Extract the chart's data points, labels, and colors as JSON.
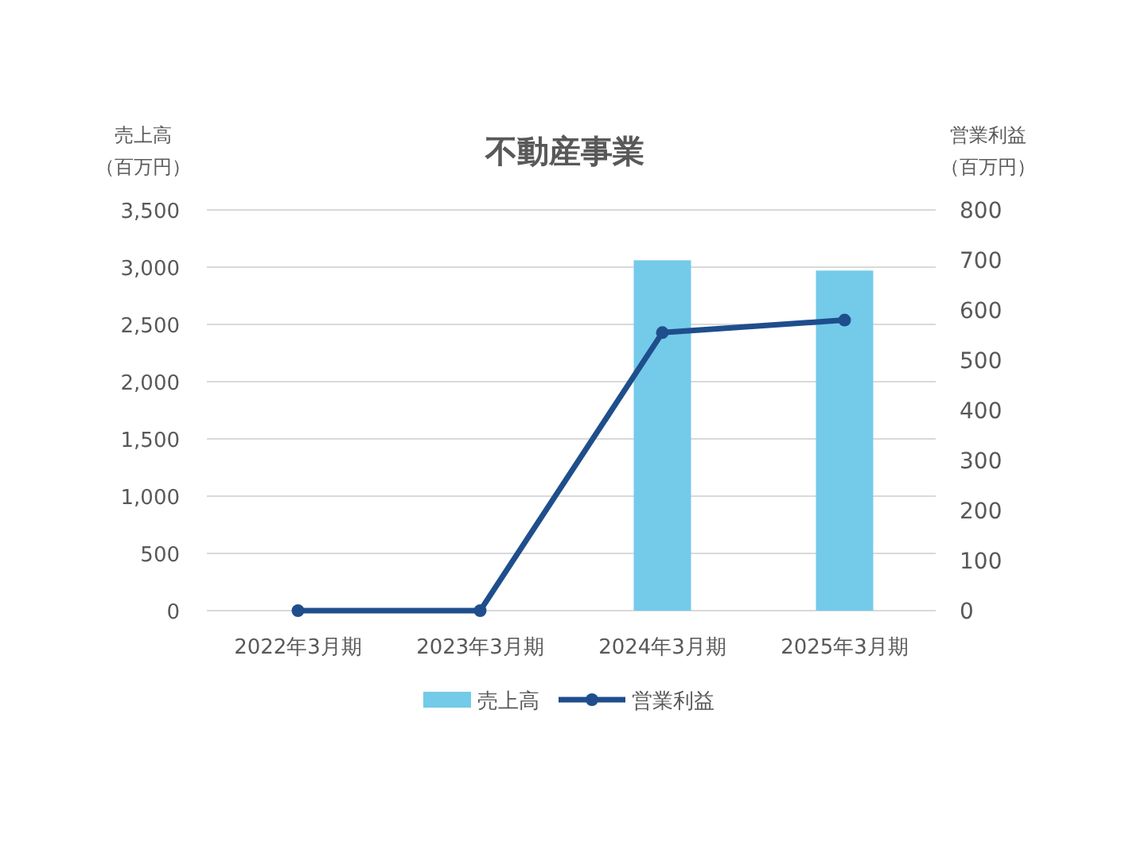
{
  "chart_data": {
    "type": "bar",
    "title": "不動産事業",
    "ylabel": "売上高（百万円）",
    "y2label": "営業利益（百万円）",
    "categories": [
      "2022年3月期",
      "2023年3月期",
      "2024年3月期",
      "2025年3月期"
    ],
    "series": [
      {
        "name": "売上高",
        "color": "#74cae9",
        "values": [
          null,
          null,
          3060,
          2970
        ]
      },
      {
        "name": "営業利益",
        "type": "line",
        "axis": "y2",
        "color": "#1f4e8c",
        "marker": "circle",
        "line_style": "solid",
        "values": [
          0,
          0,
          555,
          580
        ]
      }
    ],
    "ylim": [
      0,
      3500
    ],
    "yticks": [
      0,
      500,
      {
        "value": 1000,
        "label": "1,000"
      },
      {
        "value": 1500,
        "label": "1,500"
      },
      {
        "value": 2000,
        "label": "2,000"
      },
      {
        "value": 2500,
        "label": "2,500"
      },
      {
        "value": 3000,
        "label": "3,000"
      },
      {
        "value": 3500,
        "label": "3,500"
      }
    ],
    "y2lim": [
      0,
      800
    ],
    "y2ticks": [
      0,
      100,
      200,
      300,
      400,
      500,
      600,
      700,
      800
    ],
    "grid": "y",
    "legend": "bottom"
  }
}
